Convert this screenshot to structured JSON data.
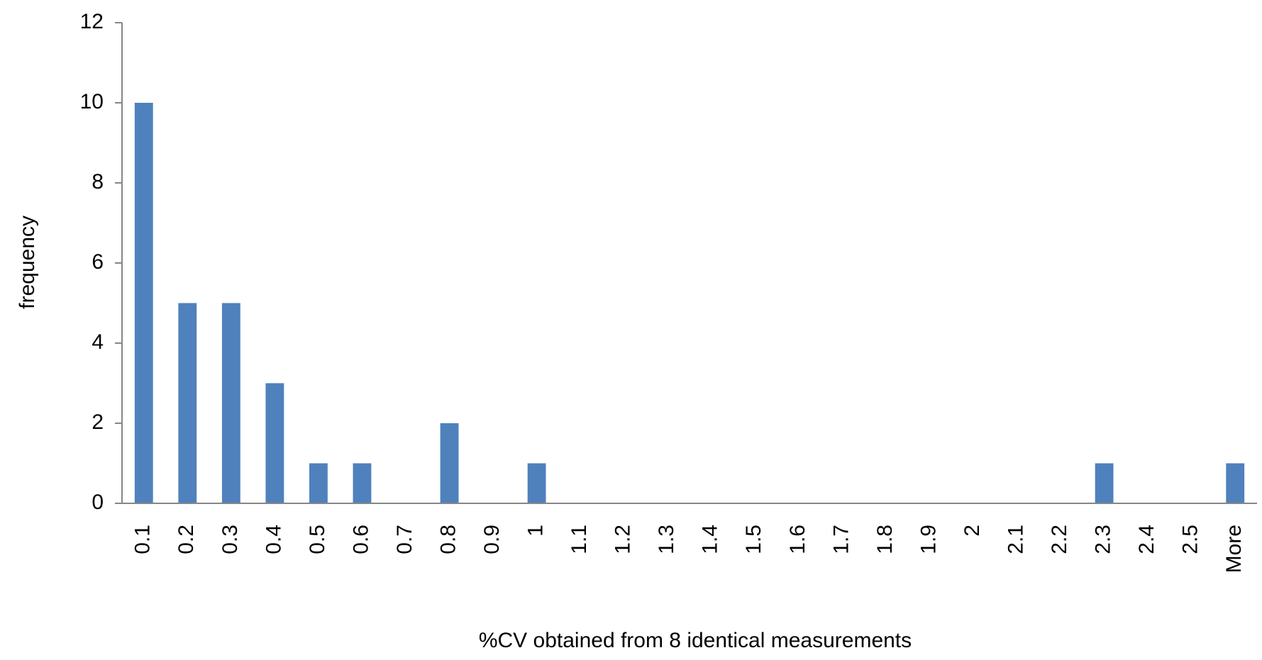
{
  "chart_data": {
    "type": "bar",
    "x_label": "%CV obtained from 8 identical measurements",
    "y_label": "frequency",
    "categories": [
      "0.1",
      "0.2",
      "0.3",
      "0.4",
      "0.5",
      "0.6",
      "0.7",
      "0.8",
      "0.9",
      "1",
      "1.1",
      "1.2",
      "1.3",
      "1.4",
      "1.5",
      "1.6",
      "1.7",
      "1.8",
      "1.9",
      "2",
      "2.1",
      "2.2",
      "2.3",
      "2.4",
      "2.5",
      "More"
    ],
    "values": [
      10,
      5,
      5,
      3,
      1,
      1,
      0,
      2,
      0,
      1,
      0,
      0,
      0,
      0,
      0,
      0,
      0,
      0,
      0,
      0,
      0,
      0,
      1,
      0,
      0,
      1
    ],
    "color": "#4f81bd",
    "ylim": [
      0,
      12
    ],
    "yticks": [
      0,
      2,
      4,
      6,
      8,
      10,
      12
    ],
    "grid": false
  }
}
